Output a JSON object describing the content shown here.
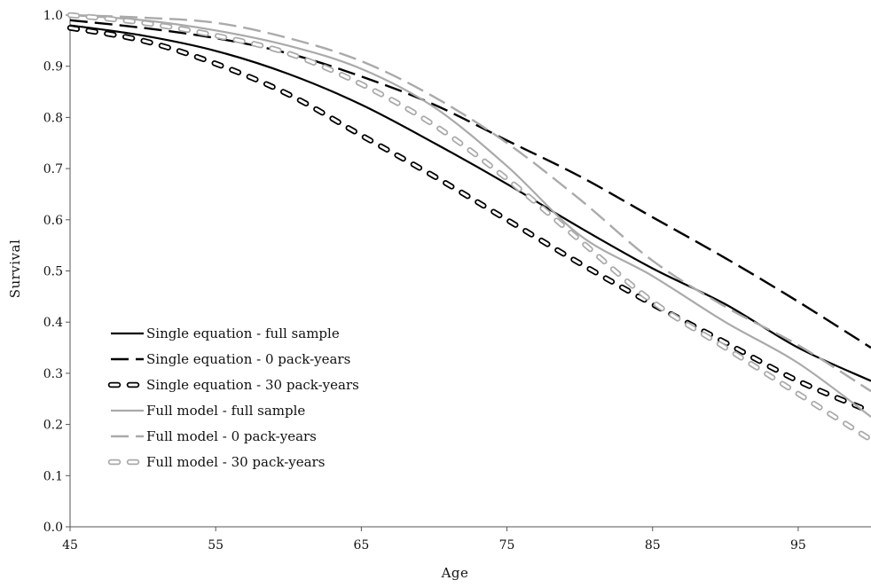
{
  "chart_data": {
    "type": "line",
    "title": "",
    "xlabel": "Age",
    "ylabel": "Survival",
    "xlim": [
      45,
      100
    ],
    "ylim": [
      0.0,
      1.0
    ],
    "xticks": [
      45,
      55,
      65,
      75,
      85,
      95
    ],
    "xtick_labels": [
      "45",
      "55",
      "65",
      "75",
      "85",
      "95"
    ],
    "yticks": [
      0.0,
      0.1,
      0.2,
      0.3,
      0.4,
      0.5,
      0.6,
      0.7,
      0.8,
      0.9,
      1.0
    ],
    "ytick_labels": [
      "0.0",
      "0.1",
      "0.2",
      "0.3",
      "0.4",
      "0.5",
      "0.6",
      "0.7",
      "0.8",
      "0.9",
      "1.0"
    ],
    "grid": false,
    "legend_position": "bottom-left",
    "x": [
      45,
      50,
      55,
      60,
      65,
      70,
      75,
      80,
      85,
      90,
      95,
      100
    ],
    "series": [
      {
        "name": "Single equation - full sample",
        "style": "solid",
        "color": "#000000",
        "values": [
          0.98,
          0.96,
          0.93,
          0.885,
          0.825,
          0.75,
          0.67,
          0.585,
          0.505,
          0.435,
          0.35,
          0.285
        ]
      },
      {
        "name": "Single equation - 0 pack-years",
        "style": "dashed",
        "color": "#000000",
        "values": [
          0.99,
          0.975,
          0.955,
          0.925,
          0.88,
          0.825,
          0.755,
          0.685,
          0.605,
          0.525,
          0.44,
          0.35
        ]
      },
      {
        "name": "Single equation - 30 pack-years",
        "style": "hollow-dash",
        "color": "#000000",
        "values": [
          0.975,
          0.95,
          0.905,
          0.845,
          0.765,
          0.685,
          0.6,
          0.515,
          0.435,
          0.36,
          0.285,
          0.225
        ]
      },
      {
        "name": "Full model - full sample",
        "style": "solid",
        "color": "#aaaaaa",
        "values": [
          1.0,
          0.99,
          0.97,
          0.94,
          0.895,
          0.82,
          0.705,
          0.57,
          0.49,
          0.4,
          0.32,
          0.215
        ]
      },
      {
        "name": "Full model - 0 pack-years",
        "style": "dashed",
        "color": "#aaaaaa",
        "values": [
          1.0,
          0.995,
          0.985,
          0.955,
          0.91,
          0.84,
          0.75,
          0.64,
          0.52,
          0.43,
          0.355,
          0.265
        ]
      },
      {
        "name": "Full model - 30 pack-years",
        "style": "hollow-dash",
        "color": "#aaaaaa",
        "values": [
          1.0,
          0.985,
          0.96,
          0.925,
          0.865,
          0.785,
          0.68,
          0.56,
          0.44,
          0.35,
          0.26,
          0.17
        ]
      }
    ]
  }
}
